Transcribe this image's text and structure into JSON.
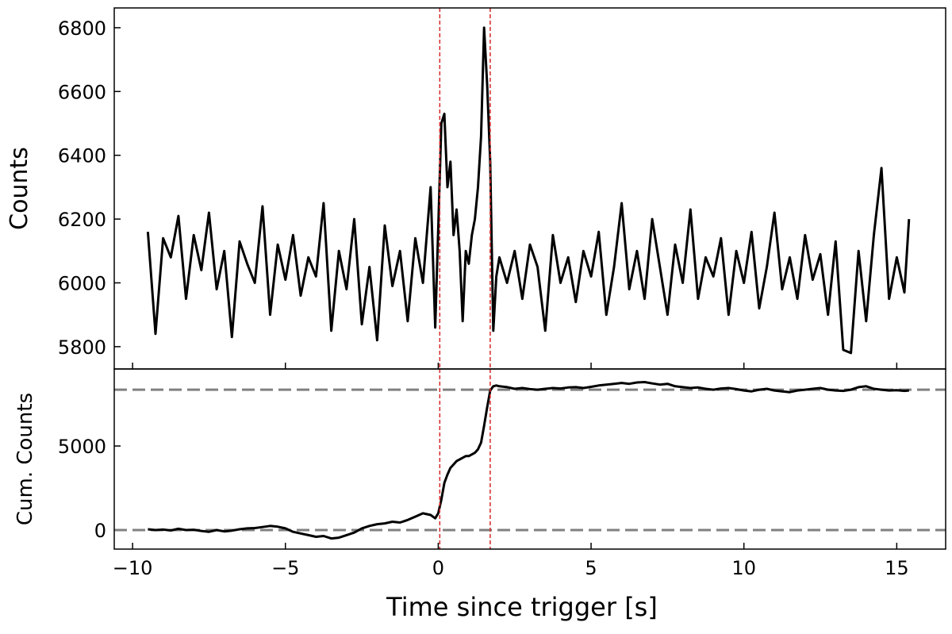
{
  "chart_data": [
    {
      "type": "line",
      "ylabel": "Counts",
      "x": [
        -9.5,
        -9.25,
        -9,
        -8.75,
        -8.5,
        -8.25,
        -8,
        -7.75,
        -7.5,
        -7.25,
        -7,
        -6.75,
        -6.5,
        -6.25,
        -6,
        -5.75,
        -5.5,
        -5.25,
        -5,
        -4.75,
        -4.5,
        -4.25,
        -4,
        -3.75,
        -3.5,
        -3.25,
        -3,
        -2.75,
        -2.5,
        -2.25,
        -2,
        -1.75,
        -1.5,
        -1.25,
        -1,
        -0.75,
        -0.5,
        -0.25,
        -0.1,
        0,
        0.1,
        0.2,
        0.3,
        0.4,
        0.5,
        0.6,
        0.7,
        0.8,
        0.9,
        1.0,
        1.1,
        1.2,
        1.3,
        1.4,
        1.5,
        1.6,
        1.7,
        1.8,
        1.9,
        2,
        2.25,
        2.5,
        2.75,
        3,
        3.25,
        3.5,
        3.75,
        4,
        4.25,
        4.5,
        4.75,
        5,
        5.25,
        5.5,
        5.75,
        6,
        6.25,
        6.5,
        6.75,
        7,
        7.25,
        7.5,
        7.75,
        8,
        8.25,
        8.5,
        8.75,
        9,
        9.25,
        9.5,
        9.75,
        10,
        10.25,
        10.5,
        10.75,
        11,
        11.25,
        11.5,
        11.75,
        12,
        12.25,
        12.5,
        12.75,
        13,
        13.25,
        13.5,
        13.75,
        14,
        14.25,
        14.5,
        14.75,
        15,
        15.25,
        15.4
      ],
      "series": [
        {
          "color": "#000000",
          "values": [
            6160,
            5840,
            6140,
            6080,
            6210,
            5950,
            6150,
            6040,
            6220,
            5980,
            6100,
            5830,
            6130,
            6060,
            6000,
            6240,
            5900,
            6120,
            6010,
            6150,
            5960,
            6080,
            6020,
            6250,
            5850,
            6100,
            5980,
            6200,
            5870,
            6050,
            5820,
            6180,
            5990,
            6100,
            5880,
            6140,
            6000,
            6300,
            5860,
            6170,
            6500,
            6530,
            6300,
            6380,
            6150,
            6230,
            6100,
            5880,
            6100,
            6060,
            6150,
            6200,
            6300,
            6460,
            6800,
            6620,
            6380,
            5850,
            6020,
            6080,
            6000,
            6100,
            5950,
            6120,
            6050,
            5850,
            6150,
            6000,
            6080,
            5940,
            6100,
            6020,
            6160,
            5900,
            6050,
            6250,
            5980,
            6100,
            5950,
            6200,
            6050,
            5900,
            6120,
            6000,
            6230,
            5950,
            6080,
            6020,
            6140,
            5900,
            6100,
            6000,
            6160,
            5920,
            6050,
            6220,
            5980,
            6080,
            5950,
            6150,
            6010,
            6090,
            5900,
            6130,
            5790,
            5780,
            6100,
            5880,
            6150,
            6360,
            5950,
            6080,
            5970,
            6200
          ]
        }
      ],
      "xlim": [
        -10.6,
        16.6
      ],
      "ylim": [
        5730,
        6862
      ],
      "xticks": [
        -10,
        -5,
        0,
        5,
        10,
        15
      ],
      "yticks": [
        5800,
        6000,
        6200,
        6400,
        6600,
        6800
      ],
      "vlines": {
        "values": [
          0.05,
          1.7
        ],
        "color": "#d62728"
      }
    },
    {
      "type": "line",
      "ylabel": "Cum. Counts",
      "xlabel": "Time since trigger [s]",
      "x": [
        -9.5,
        -9.25,
        -9,
        -8.75,
        -8.5,
        -8.25,
        -8,
        -7.75,
        -7.5,
        -7.25,
        -7,
        -6.75,
        -6.5,
        -6.25,
        -6,
        -5.75,
        -5.5,
        -5.25,
        -5,
        -4.75,
        -4.5,
        -4.25,
        -4,
        -3.75,
        -3.5,
        -3.25,
        -3,
        -2.75,
        -2.5,
        -2.25,
        -2,
        -1.75,
        -1.5,
        -1.25,
        -1,
        -0.75,
        -0.5,
        -0.25,
        -0.1,
        0,
        0.1,
        0.2,
        0.3,
        0.4,
        0.5,
        0.6,
        0.7,
        0.8,
        0.9,
        1.0,
        1.1,
        1.2,
        1.3,
        1.4,
        1.5,
        1.6,
        1.7,
        1.8,
        1.9,
        2,
        2.25,
        2.5,
        2.75,
        3,
        3.25,
        3.5,
        3.75,
        4,
        4.25,
        4.5,
        4.75,
        5,
        5.25,
        5.5,
        5.75,
        6,
        6.25,
        6.5,
        6.75,
        7,
        7.25,
        7.5,
        7.75,
        8,
        8.25,
        8.5,
        8.75,
        9,
        9.25,
        9.5,
        9.75,
        10,
        10.25,
        10.5,
        10.75,
        11,
        11.25,
        11.5,
        11.75,
        12,
        12.25,
        12.5,
        12.75,
        13,
        13.25,
        13.5,
        13.75,
        14,
        14.25,
        14.5,
        14.75,
        15,
        15.25,
        15.4
      ],
      "series": [
        {
          "color": "#000000",
          "values": [
            50,
            0,
            30,
            -20,
            80,
            0,
            20,
            -50,
            -100,
            0,
            -80,
            -30,
            50,
            100,
            120,
            180,
            250,
            200,
            100,
            -100,
            -200,
            -300,
            -400,
            -350,
            -500,
            -450,
            -300,
            -150,
            100,
            250,
            350,
            400,
            500,
            450,
            600,
            800,
            1000,
            900,
            700,
            1000,
            1800,
            2800,
            3300,
            3700,
            3900,
            4100,
            4200,
            4300,
            4400,
            4400,
            4500,
            4600,
            4800,
            5200,
            6200,
            7300,
            8300,
            8550,
            8600,
            8550,
            8500,
            8400,
            8450,
            8380,
            8350,
            8400,
            8450,
            8420,
            8480,
            8500,
            8450,
            8520,
            8600,
            8650,
            8700,
            8750,
            8700,
            8780,
            8800,
            8720,
            8650,
            8700,
            8550,
            8500,
            8450,
            8480,
            8400,
            8350,
            8420,
            8450,
            8380,
            8300,
            8250,
            8350,
            8400,
            8300,
            8250,
            8200,
            8300,
            8350,
            8400,
            8450,
            8350,
            8300,
            8280,
            8350,
            8500,
            8550,
            8400,
            8350,
            8300,
            8320,
            8280,
            8300
          ]
        }
      ],
      "xlim": [
        -10.6,
        16.6
      ],
      "ylim": [
        -1130,
        9580
      ],
      "xticks": [
        {
          "value": -10,
          "label": "−10"
        },
        {
          "value": -5,
          "label": "−5"
        },
        0,
        5,
        10,
        15
      ],
      "yticks": [
        0,
        5000
      ],
      "vlines": {
        "values": [
          0.05,
          1.7
        ],
        "color": "#d62728"
      },
      "hlines": {
        "values": [
          0,
          8350
        ],
        "color": "#808080"
      }
    }
  ]
}
